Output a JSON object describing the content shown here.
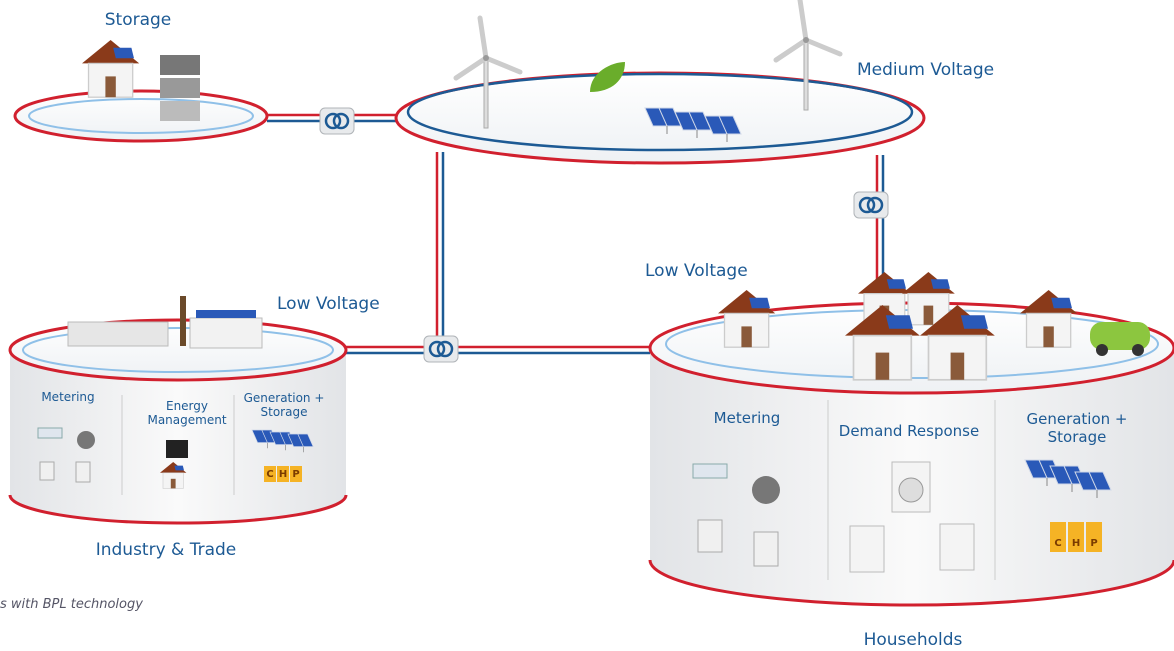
{
  "nodes": [
    {
      "label": "Storage"
    },
    {
      "label": "Medium Voltage"
    },
    {
      "label": "Low Voltage",
      "title": "Industry & Trade",
      "sections": [
        "Metering",
        "Energy Management",
        "Generation + Storage"
      ],
      "chp": [
        "C",
        "H",
        "P"
      ]
    },
    {
      "label": "Low Voltage",
      "title": "Households",
      "sections": [
        "Metering",
        "Demand Response",
        "Generation + Storage"
      ],
      "chp": [
        "C",
        "H",
        "P"
      ]
    }
  ],
  "caption": "s with BPL technology"
}
